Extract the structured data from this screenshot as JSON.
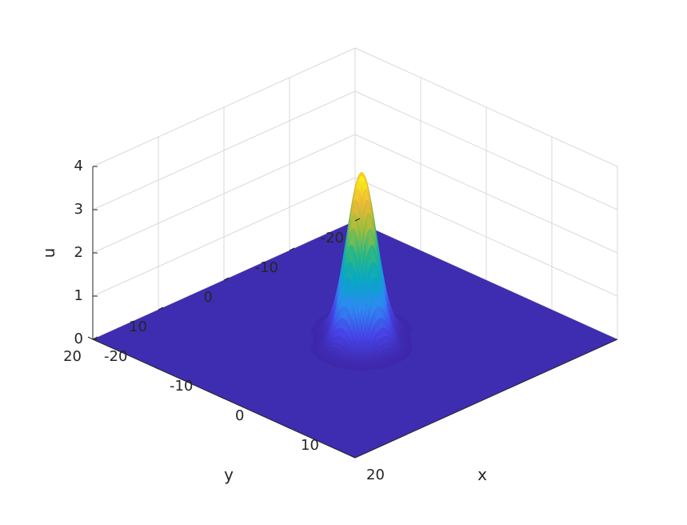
{
  "chart_data": {
    "type": "surface",
    "title": "",
    "xlabel": "x",
    "ylabel": "y",
    "zlabel": "u",
    "xlim": [
      -20,
      20
    ],
    "ylim": [
      -20,
      20
    ],
    "zlim": [
      0,
      4
    ],
    "xticks": [
      "-20",
      "-10",
      "0",
      "10",
      "20"
    ],
    "yticks": [
      "-20",
      "-10",
      "0",
      "10",
      "20"
    ],
    "zticks": [
      "0",
      "1",
      "2",
      "3",
      "4"
    ],
    "view": "azimuth -45, elevation 30",
    "grid": true,
    "colormap": "parula",
    "colormap_stops": [
      "#3e26a8",
      "#4744e8",
      "#2d8bf2",
      "#06a7c6",
      "#2ab785",
      "#a0bd39",
      "#f1b837",
      "#f9fb0e"
    ],
    "floor_color": "#3e2db0",
    "peaks": [
      {
        "x": 2,
        "y": 1,
        "height": 3.85,
        "width": 1.6
      },
      {
        "x": -1,
        "y": -2,
        "height": 3.55,
        "width": 1.6
      }
    ]
  }
}
